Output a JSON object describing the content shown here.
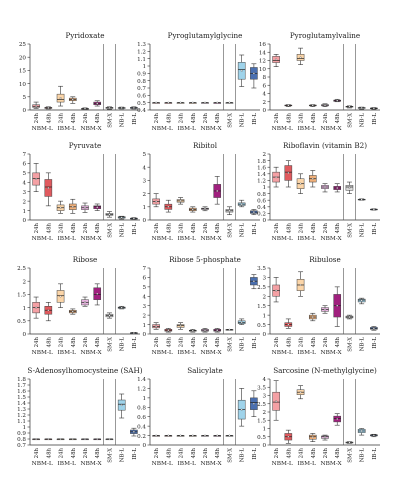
{
  "figure": {
    "groups": [
      "NBM-L",
      "IBM-L",
      "NBM-X"
    ],
    "single_labels": [
      "SM-X",
      "NB-L",
      "IB-L"
    ]
  },
  "chart_data": [
    {
      "type": "box",
      "title": "Pyridoxate",
      "ylim": [
        0,
        25
      ],
      "yticks": [
        0,
        5,
        10,
        15,
        20,
        25
      ],
      "grid": false,
      "separators": true,
      "categories": [
        "24h",
        "48h",
        "24h",
        "48h",
        "24h",
        "48h",
        "SM-X",
        "NB-L",
        "IB-L"
      ],
      "colors": [
        "#f4a0a4",
        "#e05a5e",
        "#fbd5a8",
        "#f0b07a",
        "#e8b4e0",
        "#a0207e",
        "#dddddd",
        "#9fd3ea",
        "#4a6fb0"
      ],
      "boxes": [
        [
          0.6,
          1,
          1.4,
          2,
          3
        ],
        [
          0.4,
          0.6,
          0.8,
          1,
          1.2
        ],
        [
          1.5,
          3,
          4,
          6,
          9
        ],
        [
          2.5,
          3.5,
          4,
          4.5,
          5
        ],
        [
          0.2,
          0.4,
          0.5,
          0.6,
          0.8
        ],
        [
          1.5,
          2,
          2.5,
          3,
          3.5
        ],
        [
          0.3,
          0.6,
          0.8,
          1,
          1.2
        ],
        [
          0.4,
          0.7,
          0.8,
          0.9,
          1.1
        ],
        [
          0.4,
          0.6,
          0.8,
          1,
          1.2
        ]
      ]
    },
    {
      "type": "box",
      "title": "Pyroglutamylglycine",
      "ylim": [
        0.4,
        1.3
      ],
      "yticks": [
        0.4,
        0.5,
        0.6,
        0.7,
        0.8,
        0.9,
        1,
        1.1,
        1.2,
        1.3
      ],
      "grid": false,
      "separators": true,
      "categories": [
        "24h",
        "48h",
        "24h",
        "48h",
        "24h",
        "48h",
        "SM-X",
        "NB-L",
        "IB-L"
      ],
      "colors": [
        "#f4a0a4",
        "#e05a5e",
        "#fbd5a8",
        "#f0b07a",
        "#e8b4e0",
        "#a0207e",
        "#dddddd",
        "#9fd3ea",
        "#4a6fb0"
      ],
      "boxes": [
        [
          0.5,
          0.5,
          0.5,
          0.5,
          0.5
        ],
        [
          0.5,
          0.5,
          0.5,
          0.5,
          0.5
        ],
        [
          0.5,
          0.5,
          0.5,
          0.5,
          0.5
        ],
        [
          0.5,
          0.5,
          0.5,
          0.5,
          0.5
        ],
        [
          0.5,
          0.5,
          0.5,
          0.5,
          0.5
        ],
        [
          0.5,
          0.5,
          0.5,
          0.5,
          0.5
        ],
        [
          0.5,
          0.5,
          0.5,
          0.5,
          0.5
        ],
        [
          0.72,
          0.82,
          0.95,
          1.05,
          1.15
        ],
        [
          0.7,
          0.82,
          0.9,
          0.98,
          1.03
        ]
      ]
    },
    {
      "type": "box",
      "title": "Pyroglutamylvaline",
      "ylim": [
        0,
        16
      ],
      "yticks": [
        0,
        2,
        4,
        6,
        8,
        10,
        12,
        14,
        16
      ],
      "grid": false,
      "separators": true,
      "categories": [
        "24h",
        "48h",
        "24h",
        "48h",
        "24h",
        "48h",
        "SM-X",
        "NB-L",
        "IB-L"
      ],
      "colors": [
        "#f4a0a4",
        "#e05a5e",
        "#fbd5a8",
        "#f0b07a",
        "#e8b4e0",
        "#a0207e",
        "#dddddd",
        "#9fd3ea",
        "#4a6fb0"
      ],
      "boxes": [
        [
          10.5,
          11.5,
          12,
          13,
          13.5
        ],
        [
          0.8,
          1,
          1.1,
          1.2,
          1.3
        ],
        [
          11,
          12,
          12.5,
          13.5,
          15
        ],
        [
          0.8,
          1,
          1.1,
          1.2,
          1.3
        ],
        [
          0.8,
          1,
          1.2,
          1.3,
          1.5
        ],
        [
          2,
          2.1,
          2.3,
          2.4,
          2.6
        ],
        [
          0.5,
          0.7,
          0.8,
          0.9,
          1
        ],
        [
          0.2,
          0.4,
          0.5,
          0.6,
          0.7
        ],
        [
          0.2,
          0.3,
          0.4,
          0.5,
          0.6
        ]
      ]
    },
    {
      "type": "box",
      "title": "Pyruvate",
      "ylim": [
        0,
        7
      ],
      "yticks": [
        0,
        1,
        2,
        3,
        4,
        5,
        6,
        7
      ],
      "grid": false,
      "separators": true,
      "categories": [
        "24h",
        "48h",
        "24h",
        "48h",
        "24h",
        "48h",
        "SM-X",
        "NB-L",
        "IB-L"
      ],
      "colors": [
        "#f4a0a4",
        "#e05a5e",
        "#fbd5a8",
        "#f0b07a",
        "#e8b4e0",
        "#a0207e",
        "#dddddd",
        "#9fd3ea",
        "#4a6fb0"
      ],
      "boxes": [
        [
          3,
          3.7,
          4.4,
          5,
          6
        ],
        [
          1.5,
          2.5,
          3.5,
          4.3,
          5
        ],
        [
          0.7,
          1,
          1.3,
          1.6,
          2
        ],
        [
          0.7,
          1.1,
          1.4,
          1.7,
          2.2
        ],
        [
          0.8,
          1.1,
          1.3,
          1.5,
          1.8
        ],
        [
          1,
          1.2,
          1.4,
          1.5,
          1.7
        ],
        [
          0.3,
          0.5,
          0.6,
          0.7,
          0.9
        ],
        [
          0.1,
          0.2,
          0.3,
          0.35,
          0.4
        ],
        [
          0.05,
          0.1,
          0.15,
          0.2,
          0.25
        ]
      ]
    },
    {
      "type": "box",
      "title": "Ribitol",
      "ylim": [
        0,
        5
      ],
      "yticks": [
        0,
        1,
        2,
        3,
        4,
        5
      ],
      "grid": false,
      "separators": true,
      "categories": [
        "24h",
        "48h",
        "24h",
        "48h",
        "24h",
        "48h",
        "SM-X",
        "NB-L",
        "IB-L"
      ],
      "colors": [
        "#f4a0a4",
        "#e05a5e",
        "#fbd5a8",
        "#f0b07a",
        "#e8b4e0",
        "#a0207e",
        "#dddddd",
        "#9fd3ea",
        "#4a6fb0"
      ],
      "boxes": [
        [
          1,
          1.2,
          1.4,
          1.6,
          2
        ],
        [
          0.6,
          0.8,
          1,
          1.2,
          1.5
        ],
        [
          1.2,
          1.35,
          1.45,
          1.55,
          1.7
        ],
        [
          0.6,
          0.7,
          0.8,
          0.9,
          1
        ],
        [
          0.7,
          0.8,
          0.85,
          0.9,
          1
        ],
        [
          1.2,
          1.7,
          2.2,
          2.7,
          3.3
        ],
        [
          0.4,
          0.6,
          0.7,
          0.8,
          1
        ],
        [
          1,
          1.1,
          1.2,
          1.3,
          1.5
        ],
        [
          0.4,
          0.5,
          0.6,
          0.7,
          0.8
        ]
      ]
    },
    {
      "type": "box",
      "title": "Riboflavin (vitamin B2)",
      "ylim": [
        0,
        2
      ],
      "yticks": [
        0,
        0.2,
        0.4,
        0.6,
        0.8,
        1,
        1.2,
        1.4,
        1.6,
        1.8,
        2
      ],
      "grid": false,
      "separators": true,
      "categories": [
        "24h",
        "48h",
        "24h",
        "48h",
        "24h",
        "48h",
        "SM-X",
        "NB-L",
        "IB-L"
      ],
      "colors": [
        "#f4a0a4",
        "#e05a5e",
        "#fbd5a8",
        "#f0b07a",
        "#e8b4e0",
        "#a0207e",
        "#dddddd",
        "#9fd3ea",
        "#4a6fb0"
      ],
      "boxes": [
        [
          1,
          1.15,
          1.3,
          1.45,
          1.6
        ],
        [
          1,
          1.2,
          1.45,
          1.65,
          1.8
        ],
        [
          0.8,
          0.95,
          1.1,
          1.25,
          1.4
        ],
        [
          1,
          1.15,
          1.25,
          1.35,
          1.5
        ],
        [
          0.85,
          0.95,
          1,
          1.05,
          1.1
        ],
        [
          0.85,
          0.92,
          0.97,
          1.02,
          1.1
        ],
        [
          0.8,
          0.9,
          1,
          1.05,
          1.15
        ],
        [
          0.6,
          0.61,
          0.62,
          0.63,
          0.64
        ],
        [
          0.3,
          0.31,
          0.32,
          0.33,
          0.34
        ]
      ]
    },
    {
      "type": "box",
      "title": "Ribose",
      "ylim": [
        0,
        2.5
      ],
      "yticks": [
        0,
        0.5,
        1,
        1.5,
        2,
        2.5
      ],
      "grid": false,
      "separators": true,
      "categories": [
        "24h",
        "48h",
        "24h",
        "48h",
        "24h",
        "48h",
        "SM-X",
        "NB-L",
        "IB-L"
      ],
      "colors": [
        "#f4a0a4",
        "#e05a5e",
        "#fbd5a8",
        "#f0b07a",
        "#e8b4e0",
        "#a0207e",
        "#dddddd",
        "#9fd3ea",
        "#4a6fb0"
      ],
      "boxes": [
        [
          0.6,
          0.8,
          1,
          1.2,
          1.4
        ],
        [
          0.5,
          0.75,
          0.9,
          1.05,
          1.2
        ],
        [
          1,
          1.2,
          1.45,
          1.65,
          1.9
        ],
        [
          0.75,
          0.8,
          0.85,
          0.9,
          0.95
        ],
        [
          1.05,
          1.1,
          1.2,
          1.3,
          1.4
        ],
        [
          1.1,
          1.3,
          1.5,
          1.75,
          1.9
        ],
        [
          0.6,
          0.65,
          0.7,
          0.75,
          0.8
        ],
        [
          0.95,
          0.97,
          1,
          1.02,
          1.05
        ],
        [
          0.02,
          0.03,
          0.04,
          0.05,
          0.06
        ]
      ]
    },
    {
      "type": "box",
      "title": "Ribose 5-phosphate",
      "ylim": [
        0,
        7
      ],
      "yticks": [
        0,
        1,
        2,
        3,
        4,
        5,
        6,
        7
      ],
      "grid": false,
      "separators": true,
      "categories": [
        "24h",
        "48h",
        "24h",
        "48h",
        "24h",
        "48h",
        "SM-X",
        "NB-L",
        "IB-L"
      ],
      "colors": [
        "#f4a0a4",
        "#e05a5e",
        "#fbd5a8",
        "#f0b07a",
        "#e8b4e0",
        "#a0207e",
        "#dddddd",
        "#9fd3ea",
        "#4a6fb0"
      ],
      "boxes": [
        [
          0.5,
          0.65,
          0.8,
          1,
          1.2
        ],
        [
          0.2,
          0.3,
          0.4,
          0.5,
          0.6
        ],
        [
          0.5,
          0.7,
          0.9,
          1,
          1.2
        ],
        [
          0.2,
          0.3,
          0.35,
          0.4,
          0.5
        ],
        [
          0.2,
          0.3,
          0.4,
          0.5,
          0.6
        ],
        [
          0.2,
          0.3,
          0.4,
          0.5,
          0.6
        ],
        [
          0.4,
          0.42,
          0.45,
          0.48,
          0.5
        ],
        [
          1,
          1.1,
          1.2,
          1.4,
          1.6
        ],
        [
          4.8,
          5.2,
          5.6,
          6,
          6.3
        ]
      ]
    },
    {
      "type": "box",
      "title": "Ribulose",
      "ylim": [
        0,
        3.5
      ],
      "yticks": [
        0,
        0.5,
        1,
        1.5,
        2,
        2.5,
        3,
        3.5
      ],
      "grid": false,
      "separators": true,
      "categories": [
        "24h",
        "48h",
        "24h",
        "48h",
        "24h",
        "48h",
        "SM-X",
        "NB-L",
        "IB-L"
      ],
      "colors": [
        "#f4a0a4",
        "#e05a5e",
        "#fbd5a8",
        "#f0b07a",
        "#e8b4e0",
        "#a0207e",
        "#dddddd",
        "#9fd3ea",
        "#4a6fb0"
      ],
      "boxes": [
        [
          1.7,
          2,
          2.3,
          2.6,
          3
        ],
        [
          0.3,
          0.4,
          0.5,
          0.6,
          0.8
        ],
        [
          2,
          2.3,
          2.6,
          2.9,
          3.3
        ],
        [
          0.7,
          0.8,
          0.9,
          1,
          1.1
        ],
        [
          1.1,
          1.2,
          1.3,
          1.4,
          1.5
        ],
        [
          0.4,
          0.9,
          1.5,
          2.1,
          2.5
        ],
        [
          0.8,
          0.85,
          0.9,
          0.95,
          1
        ],
        [
          1.6,
          1.7,
          1.8,
          1.85,
          1.9
        ],
        [
          0.2,
          0.25,
          0.3,
          0.35,
          0.4
        ]
      ]
    },
    {
      "type": "box",
      "title": "S-Adenosylhomocysteine (SAH)",
      "ylim": [
        0.7,
        1.8
      ],
      "yticks": [
        0.7,
        0.8,
        0.9,
        1,
        1.1,
        1.2,
        1.3,
        1.4,
        1.5,
        1.6,
        1.7,
        1.8
      ],
      "grid": false,
      "separators": true,
      "categories": [
        "24h",
        "48h",
        "24h",
        "48h",
        "24h",
        "48h",
        "SM-X",
        "NB-L",
        "IB-L"
      ],
      "colors": [
        "#f4a0a4",
        "#e05a5e",
        "#fbd5a8",
        "#f0b07a",
        "#e8b4e0",
        "#a0207e",
        "#dddddd",
        "#9fd3ea",
        "#4a6fb0"
      ],
      "boxes": [
        [
          0.8,
          0.8,
          0.8,
          0.8,
          0.8
        ],
        [
          0.8,
          0.8,
          0.8,
          0.8,
          0.8
        ],
        [
          0.8,
          0.8,
          0.8,
          0.8,
          0.8
        ],
        [
          0.8,
          0.8,
          0.8,
          0.8,
          0.8
        ],
        [
          0.8,
          0.8,
          0.8,
          0.8,
          0.8
        ],
        [
          0.8,
          0.8,
          0.8,
          0.8,
          0.8
        ],
        [
          0.8,
          0.8,
          0.8,
          0.8,
          0.8
        ],
        [
          1.15,
          1.28,
          1.38,
          1.45,
          1.55
        ],
        [
          0.85,
          0.89,
          0.92,
          0.95,
          0.98
        ]
      ]
    },
    {
      "type": "box",
      "title": "Salicylate",
      "ylim": [
        0,
        1.4
      ],
      "yticks": [
        0,
        0.2,
        0.4,
        0.6,
        0.8,
        1,
        1.2,
        1.4
      ],
      "grid": false,
      "separators": true,
      "categories": [
        "24h",
        "48h",
        "24h",
        "48h",
        "24h",
        "48h",
        "SM-X",
        "NB-L",
        "IB-L"
      ],
      "colors": [
        "#f4a0a4",
        "#e05a5e",
        "#fbd5a8",
        "#f0b07a",
        "#e8b4e0",
        "#a0207e",
        "#dddddd",
        "#9fd3ea",
        "#4a6fb0"
      ],
      "boxes": [
        [
          0.2,
          0.2,
          0.2,
          0.2,
          0.2
        ],
        [
          0.2,
          0.2,
          0.2,
          0.2,
          0.2
        ],
        [
          0.2,
          0.2,
          0.2,
          0.2,
          0.2
        ],
        [
          0.2,
          0.2,
          0.2,
          0.2,
          0.2
        ],
        [
          0.2,
          0.2,
          0.2,
          0.2,
          0.2
        ],
        [
          0.2,
          0.2,
          0.2,
          0.2,
          0.2
        ],
        [
          0.2,
          0.2,
          0.2,
          0.2,
          0.2
        ],
        [
          0.4,
          0.55,
          0.75,
          0.95,
          1.2
        ],
        [
          0.6,
          0.75,
          0.9,
          1,
          1.15
        ]
      ]
    },
    {
      "type": "box",
      "title": "Sarcosine (N-methylglycine)",
      "ylim": [
        0,
        4
      ],
      "yticks": [
        0,
        0.5,
        1,
        1.5,
        2,
        2.5,
        3,
        3.5,
        4
      ],
      "grid": false,
      "separators": true,
      "categories": [
        "24h",
        "48h",
        "24h",
        "48h",
        "24h",
        "48h",
        "SM-X",
        "NB-L",
        "IB-L"
      ],
      "colors": [
        "#f4a0a4",
        "#e05a5e",
        "#fbd5a8",
        "#f0b07a",
        "#e8b4e0",
        "#a0207e",
        "#dddddd",
        "#9fd3ea",
        "#4a6fb0"
      ],
      "boxes": [
        [
          1.5,
          2.1,
          2.6,
          3.2,
          3.9
        ],
        [
          0.1,
          0.3,
          0.5,
          0.7,
          0.9
        ],
        [
          2.8,
          3.05,
          3.2,
          3.35,
          3.6
        ],
        [
          0.2,
          0.35,
          0.5,
          0.6,
          0.7
        ],
        [
          0.3,
          0.4,
          0.5,
          0.55,
          0.6
        ],
        [
          1.2,
          1.4,
          1.6,
          1.75,
          1.9
        ],
        [
          0.1,
          0.12,
          0.15,
          0.18,
          0.2
        ],
        [
          0.6,
          0.75,
          0.85,
          0.95,
          1
        ],
        [
          0.5,
          0.55,
          0.6,
          0.62,
          0.65
        ]
      ]
    }
  ]
}
